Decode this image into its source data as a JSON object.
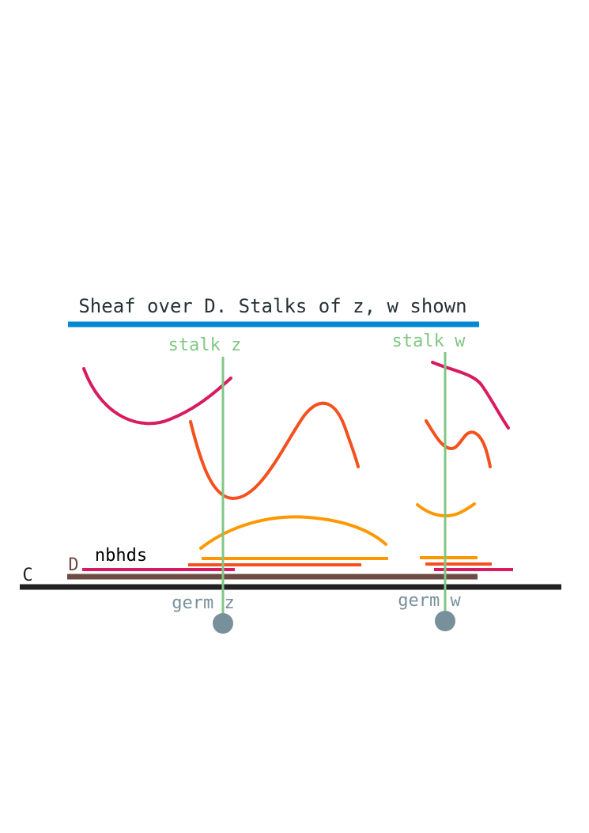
{
  "title": "Sheaf over D. Stalks of z, w shown",
  "labels": {
    "stalk_z": "stalk z",
    "stalk_w": "stalk w",
    "germ_z": "germ z",
    "germ_w": "germ w",
    "C": "C",
    "D": "D",
    "nbhds": "nbhds"
  },
  "colors": {
    "title_bar": "#0288d1",
    "title_text": "#263238",
    "stalk": "#81c784",
    "germ": "#78909c",
    "base_C": "#212121",
    "domain_D": "#6d4c41",
    "section_magenta": "#d81b60",
    "section_red_orange": "#f4511e",
    "section_orange": "#ff9800"
  }
}
